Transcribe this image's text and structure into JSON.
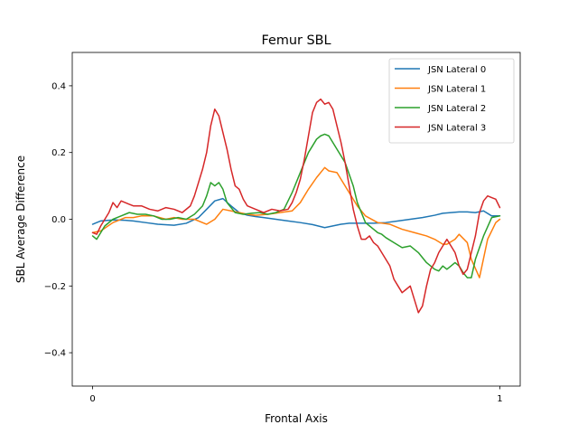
{
  "chart_data": {
    "type": "line",
    "title": "Femur SBL",
    "xlabel": "Frontal Axis",
    "ylabel": "SBL Average Difference",
    "xlim": [
      -0.05,
      1.05
    ],
    "ylim": [
      -0.5,
      0.5
    ],
    "x_ticks": [
      0,
      1
    ],
    "x_tick_labels": [
      "0",
      "1"
    ],
    "y_ticks": [
      -0.4,
      -0.2,
      0.0,
      0.2,
      0.4
    ],
    "y_tick_labels": [
      "−0.4",
      "−0.2",
      "0.0",
      "0.2",
      "0.4"
    ],
    "grid": false,
    "legend_position": "top-right",
    "series": [
      {
        "name": "JSN Lateral 0",
        "color": "#1f77b4",
        "x": [
          0,
          0.02,
          0.05,
          0.08,
          0.1,
          0.13,
          0.16,
          0.2,
          0.23,
          0.26,
          0.28,
          0.3,
          0.32,
          0.34,
          0.36,
          0.38,
          0.4,
          0.42,
          0.45,
          0.48,
          0.51,
          0.54,
          0.57,
          0.59,
          0.61,
          0.63,
          0.66,
          0.69,
          0.72,
          0.75,
          0.78,
          0.81,
          0.84,
          0.86,
          0.88,
          0.9,
          0.92,
          0.94,
          0.96,
          0.98,
          1.0
        ],
        "y": [
          -0.015,
          -0.005,
          -0.002,
          -0.003,
          -0.005,
          -0.01,
          -0.015,
          -0.018,
          -0.012,
          0.005,
          0.03,
          0.055,
          0.062,
          0.04,
          0.02,
          0.012,
          0.008,
          0.005,
          0.0,
          -0.005,
          -0.01,
          -0.016,
          -0.025,
          -0.02,
          -0.015,
          -0.012,
          -0.012,
          -0.012,
          -0.01,
          -0.005,
          0.0,
          0.005,
          0.012,
          0.018,
          0.02,
          0.022,
          0.022,
          0.02,
          0.025,
          0.01,
          0.01
        ]
      },
      {
        "name": "JSN Lateral 1",
        "color": "#ff7f0e",
        "x": [
          0,
          0.02,
          0.05,
          0.08,
          0.1,
          0.12,
          0.15,
          0.18,
          0.2,
          0.22,
          0.25,
          0.28,
          0.3,
          0.32,
          0.34,
          0.36,
          0.38,
          0.4,
          0.43,
          0.46,
          0.49,
          0.51,
          0.53,
          0.55,
          0.57,
          0.58,
          0.6,
          0.61,
          0.63,
          0.65,
          0.67,
          0.7,
          0.73,
          0.76,
          0.79,
          0.82,
          0.84,
          0.86,
          0.87,
          0.89,
          0.9,
          0.92,
          0.93,
          0.95,
          0.97,
          0.99,
          1.0
        ],
        "y": [
          -0.04,
          -0.035,
          -0.01,
          0.005,
          0.005,
          0.01,
          0.01,
          0.0,
          0.005,
          0.0,
          0.0,
          -0.015,
          0.0,
          0.03,
          0.025,
          0.02,
          0.015,
          0.012,
          0.015,
          0.02,
          0.025,
          0.05,
          0.09,
          0.125,
          0.155,
          0.145,
          0.14,
          0.12,
          0.08,
          0.04,
          0.01,
          -0.01,
          -0.015,
          -0.03,
          -0.04,
          -0.05,
          -0.06,
          -0.075,
          -0.075,
          -0.06,
          -0.045,
          -0.07,
          -0.12,
          -0.175,
          -0.06,
          -0.01,
          0.0
        ]
      },
      {
        "name": "JSN Lateral 2",
        "color": "#2ca02c",
        "x": [
          0,
          0.01,
          0.03,
          0.05,
          0.07,
          0.09,
          0.11,
          0.13,
          0.15,
          0.17,
          0.19,
          0.21,
          0.23,
          0.25,
          0.27,
          0.28,
          0.29,
          0.3,
          0.31,
          0.32,
          0.33,
          0.35,
          0.37,
          0.39,
          0.41,
          0.43,
          0.45,
          0.47,
          0.49,
          0.51,
          0.53,
          0.55,
          0.56,
          0.57,
          0.58,
          0.59,
          0.6,
          0.62,
          0.64,
          0.65,
          0.66,
          0.67,
          0.68,
          0.69,
          0.7,
          0.71,
          0.72,
          0.74,
          0.76,
          0.78,
          0.8,
          0.82,
          0.84,
          0.85,
          0.86,
          0.87,
          0.88,
          0.89,
          0.9,
          0.91,
          0.92,
          0.93,
          0.94,
          0.96,
          0.98,
          1.0
        ],
        "y": [
          -0.05,
          -0.06,
          -0.02,
          0.0,
          0.01,
          0.02,
          0.015,
          0.015,
          0.01,
          0.0,
          0.0,
          0.005,
          0.0,
          0.015,
          0.04,
          0.07,
          0.11,
          0.1,
          0.11,
          0.09,
          0.05,
          0.02,
          0.015,
          0.018,
          0.02,
          0.015,
          0.02,
          0.03,
          0.08,
          0.14,
          0.2,
          0.24,
          0.25,
          0.255,
          0.25,
          0.23,
          0.21,
          0.17,
          0.1,
          0.05,
          0.02,
          -0.01,
          -0.02,
          -0.03,
          -0.04,
          -0.045,
          -0.055,
          -0.07,
          -0.085,
          -0.08,
          -0.1,
          -0.13,
          -0.15,
          -0.155,
          -0.14,
          -0.15,
          -0.14,
          -0.13,
          -0.14,
          -0.16,
          -0.175,
          -0.175,
          -0.12,
          -0.05,
          0.005,
          0.01
        ]
      },
      {
        "name": "JSN Lateral 3",
        "color": "#d62728",
        "x": [
          0,
          0.01,
          0.02,
          0.03,
          0.04,
          0.05,
          0.06,
          0.07,
          0.08,
          0.09,
          0.1,
          0.12,
          0.14,
          0.16,
          0.18,
          0.2,
          0.22,
          0.24,
          0.25,
          0.26,
          0.27,
          0.28,
          0.29,
          0.3,
          0.31,
          0.32,
          0.33,
          0.34,
          0.35,
          0.36,
          0.37,
          0.38,
          0.4,
          0.42,
          0.44,
          0.46,
          0.48,
          0.49,
          0.5,
          0.51,
          0.52,
          0.53,
          0.54,
          0.55,
          0.56,
          0.57,
          0.58,
          0.59,
          0.6,
          0.61,
          0.62,
          0.63,
          0.64,
          0.65,
          0.66,
          0.67,
          0.68,
          0.69,
          0.7,
          0.71,
          0.72,
          0.73,
          0.74,
          0.75,
          0.76,
          0.77,
          0.78,
          0.79,
          0.8,
          0.81,
          0.82,
          0.83,
          0.84,
          0.85,
          0.86,
          0.87,
          0.88,
          0.89,
          0.9,
          0.91,
          0.92,
          0.93,
          0.94,
          0.95,
          0.96,
          0.97,
          0.98,
          0.99,
          1.0
        ],
        "y": [
          -0.04,
          -0.045,
          -0.02,
          0.0,
          0.02,
          0.05,
          0.035,
          0.055,
          0.05,
          0.045,
          0.04,
          0.04,
          0.03,
          0.025,
          0.035,
          0.03,
          0.02,
          0.04,
          0.07,
          0.11,
          0.15,
          0.2,
          0.28,
          0.33,
          0.31,
          0.26,
          0.21,
          0.15,
          0.1,
          0.09,
          0.06,
          0.04,
          0.03,
          0.02,
          0.03,
          0.025,
          0.03,
          0.05,
          0.08,
          0.12,
          0.18,
          0.25,
          0.32,
          0.35,
          0.36,
          0.345,
          0.35,
          0.33,
          0.28,
          0.23,
          0.17,
          0.1,
          0.03,
          -0.02,
          -0.06,
          -0.06,
          -0.05,
          -0.07,
          -0.08,
          -0.1,
          -0.12,
          -0.14,
          -0.18,
          -0.2,
          -0.22,
          -0.21,
          -0.2,
          -0.24,
          -0.28,
          -0.26,
          -0.2,
          -0.15,
          -0.13,
          -0.1,
          -0.08,
          -0.06,
          -0.08,
          -0.1,
          -0.14,
          -0.165,
          -0.15,
          -0.1,
          -0.05,
          0.02,
          0.055,
          0.07,
          0.065,
          0.06,
          0.035
        ]
      }
    ]
  }
}
